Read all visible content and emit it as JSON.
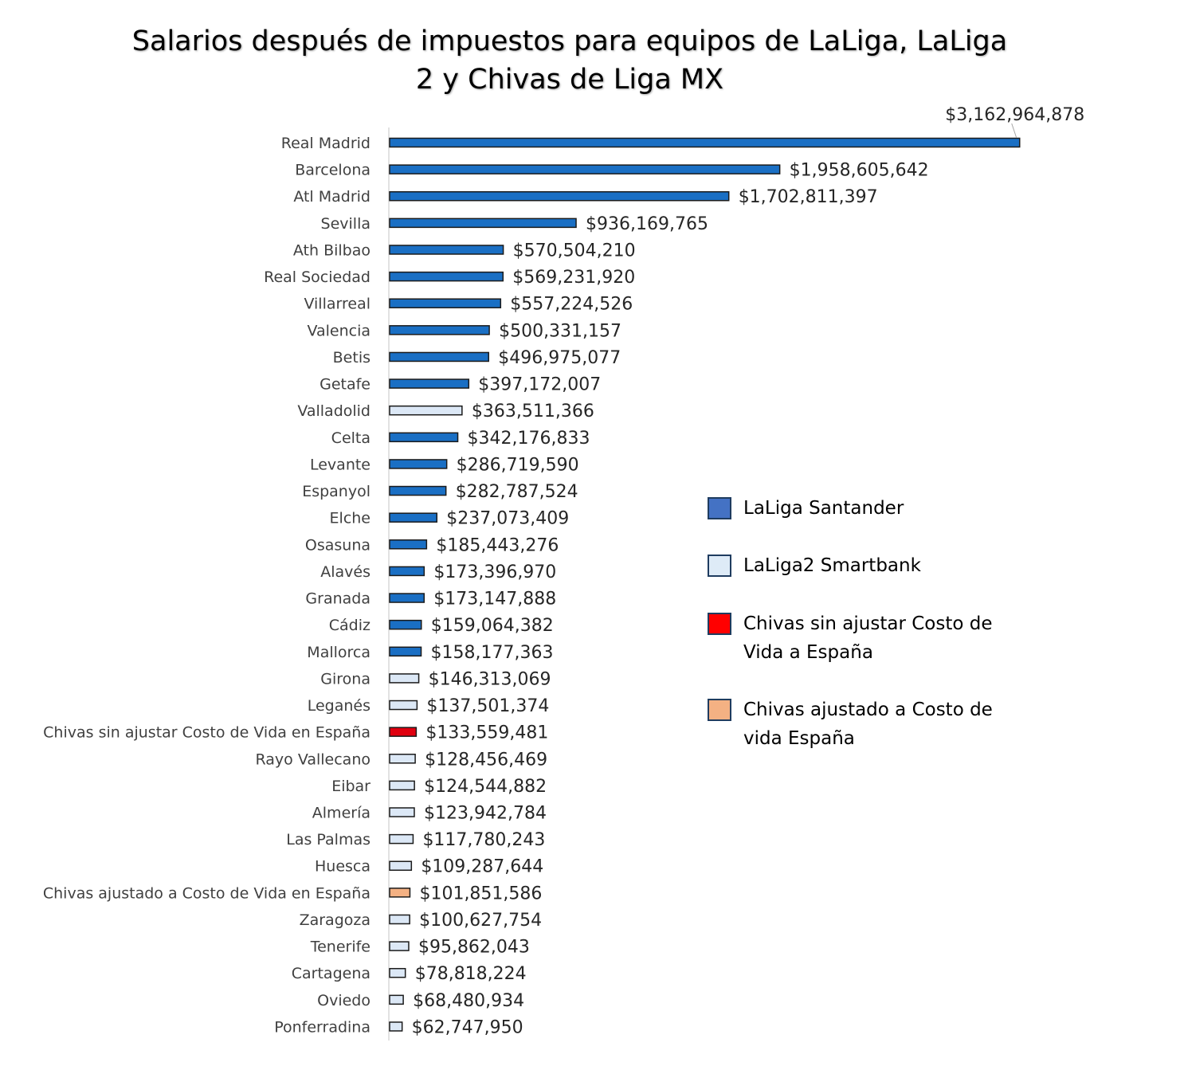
{
  "chart_data": {
    "type": "bar",
    "orientation": "horizontal",
    "title": "Salarios después de impuestos para equipos de LaLiga, LaLiga 2 y Chivas de Liga MX",
    "title_lines": [
      "Salarios después de impuestos para equipos de LaLiga, LaLiga",
      "2 y Chivas de Liga MX"
    ],
    "legend_position": "right",
    "grid": false,
    "xlim": [
      0,
      3200000000
    ],
    "colors": {
      "laliga": "#1a6fc4",
      "laliga2": "#dce8f6",
      "chivas_raw": "#e0000f",
      "chivas_adj": "#f4b183",
      "bar_border": "#1b1b1b"
    },
    "legend": [
      {
        "label_lines": [
          "LaLiga Santander"
        ],
        "color": "#4472c4"
      },
      {
        "label_lines": [
          "LaLiga2 Smartbank"
        ],
        "color": "#deebf7"
      },
      {
        "label_lines": [
          "Chivas sin ajustar Costo de",
          "Vida a España"
        ],
        "color": "#ff0000"
      },
      {
        "label_lines": [
          "Chivas ajustado a Costo de",
          "vida España"
        ],
        "color": "#f4b183"
      }
    ],
    "bars": [
      {
        "category": "Real Madrid",
        "value": 3162964878,
        "label": "$3,162,964,878",
        "group": "laliga"
      },
      {
        "category": "Barcelona",
        "value": 1958605642,
        "label": "$1,958,605,642",
        "group": "laliga"
      },
      {
        "category": "Atl Madrid",
        "value": 1702811397,
        "label": "$1,702,811,397",
        "group": "laliga"
      },
      {
        "category": "Sevilla",
        "value": 936169765,
        "label": "$936,169,765",
        "group": "laliga"
      },
      {
        "category": "Ath Bilbao",
        "value": 570504210,
        "label": "$570,504,210",
        "group": "laliga"
      },
      {
        "category": "Real Sociedad",
        "value": 569231920,
        "label": "$569,231,920",
        "group": "laliga"
      },
      {
        "category": "Villarreal",
        "value": 557224526,
        "label": "$557,224,526",
        "group": "laliga"
      },
      {
        "category": "Valencia",
        "value": 500331157,
        "label": "$500,331,157",
        "group": "laliga"
      },
      {
        "category": "Betis",
        "value": 496975077,
        "label": "$496,975,077",
        "group": "laliga"
      },
      {
        "category": "Getafe",
        "value": 397172007,
        "label": "$397,172,007",
        "group": "laliga"
      },
      {
        "category": "Valladolid",
        "value": 363511366,
        "label": "$363,511,366",
        "group": "laliga2"
      },
      {
        "category": "Celta",
        "value": 342176833,
        "label": "$342,176,833",
        "group": "laliga"
      },
      {
        "category": "Levante",
        "value": 286719590,
        "label": "$286,719,590",
        "group": "laliga"
      },
      {
        "category": "Espanyol",
        "value": 282787524,
        "label": "$282,787,524",
        "group": "laliga"
      },
      {
        "category": "Elche",
        "value": 237073409,
        "label": "$237,073,409",
        "group": "laliga"
      },
      {
        "category": "Osasuna",
        "value": 185443276,
        "label": "$185,443,276",
        "group": "laliga"
      },
      {
        "category": "Alavés",
        "value": 173396970,
        "label": "$173,396,970",
        "group": "laliga"
      },
      {
        "category": "Granada",
        "value": 173147888,
        "label": "$173,147,888",
        "group": "laliga"
      },
      {
        "category": "Cádiz",
        "value": 159064382,
        "label": "$159,064,382",
        "group": "laliga"
      },
      {
        "category": "Mallorca",
        "value": 158177363,
        "label": "$158,177,363",
        "group": "laliga"
      },
      {
        "category": "Girona",
        "value": 146313069,
        "label": "$146,313,069",
        "group": "laliga2"
      },
      {
        "category": "Leganés",
        "value": 137501374,
        "label": "$137,501,374",
        "group": "laliga2"
      },
      {
        "category": "Chivas sin ajustar Costo de Vida en España",
        "value": 133559481,
        "label": "$133,559,481",
        "group": "chivas_raw"
      },
      {
        "category": "Rayo Vallecano",
        "value": 128456469,
        "label": "$128,456,469",
        "group": "laliga2"
      },
      {
        "category": "Eibar",
        "value": 124544882,
        "label": "$124,544,882",
        "group": "laliga2"
      },
      {
        "category": "Almería",
        "value": 123942784,
        "label": "$123,942,784",
        "group": "laliga2"
      },
      {
        "category": "Las Palmas",
        "value": 117780243,
        "label": "$117,780,243",
        "group": "laliga2"
      },
      {
        "category": "Huesca",
        "value": 109287644,
        "label": "$109,287,644",
        "group": "laliga2"
      },
      {
        "category": "Chivas ajustado a Costo de Vida en España",
        "value": 101851586,
        "label": "$101,851,586",
        "group": "chivas_adj"
      },
      {
        "category": "Zaragoza",
        "value": 100627754,
        "label": "$100,627,754",
        "group": "laliga2"
      },
      {
        "category": "Tenerife",
        "value": 95862043,
        "label": "$95,862,043",
        "group": "laliga2"
      },
      {
        "category": "Cartagena",
        "value": 78818224,
        "label": "$78,818,224",
        "group": "laliga2"
      },
      {
        "category": "Oviedo",
        "value": 68480934,
        "label": "$68,480,934",
        "group": "laliga2"
      },
      {
        "category": "Ponferradina",
        "value": 62747950,
        "label": "$62,747,950",
        "group": "laliga2"
      }
    ]
  }
}
